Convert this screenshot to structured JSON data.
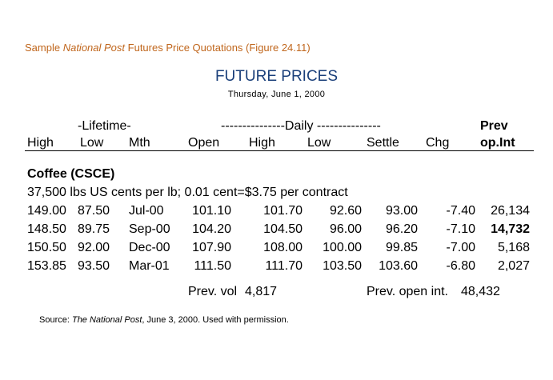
{
  "caption": {
    "prefix": "Sample ",
    "italic": "National Post",
    "suffix": " Futures Price Quotations (Figure 24.11)"
  },
  "heading": "FUTURE PRICES",
  "dateline": "Thursday, June 1, 2000",
  "header": {
    "lifetime_group": "-Lifetime-",
    "daily_group": "---------------Daily ---------------",
    "prev": "Prev",
    "high": "High",
    "low": "Low",
    "mth": "Mth",
    "open": "Open",
    "daily_high": "High",
    "daily_low": "Low",
    "settle": "Settle",
    "chg": "Chg",
    "op_int": "op.Int"
  },
  "section": {
    "title": "Coffee (CSCE)",
    "contract_spec": "37,500 lbs US cents per lb; 0.01 cent=$3.75 per contract"
  },
  "rows": [
    {
      "high": "149.00",
      "low": "87.50",
      "mth": "Jul-00",
      "open": "101.10",
      "dhigh": "101.70",
      "dlow": "92.60",
      "settle": "93.00",
      "chg": "-7.40",
      "opint": "26,134"
    },
    {
      "high": "148.50",
      "low": "89.75",
      "mth": "Sep-00",
      "open": "104.20",
      "dhigh": "104.50",
      "dlow": "96.00",
      "settle": "96.20",
      "chg": "-7.10",
      "opint": "14,732"
    },
    {
      "high": "150.50",
      "low": "92.00",
      "mth": "Dec-00",
      "open": "107.90",
      "dhigh": "108.00",
      "dlow": "100.00",
      "settle": "99.85",
      "chg": "-7.00",
      "opint": "5,168"
    },
    {
      "high": "153.85",
      "low": "93.50",
      "mth": "Mar-01",
      "open": "111.50",
      "dhigh": "111.70",
      "dlow": "103.50",
      "settle": "103.60",
      "chg": "-6.80",
      "opint": "2,027"
    }
  ],
  "footer": {
    "prev_vol_label": "Prev. vol",
    "prev_vol": "4,817",
    "prev_open_int_label": "Prev. open int.",
    "prev_open_int": "48,432"
  },
  "source": {
    "prefix": "Source: ",
    "italic": "The National Post",
    "suffix": ", June 3, 2000.  Used with permission."
  },
  "colors": {
    "caption": "#c0661c",
    "heading": "#1a3f7a",
    "text": "#000000"
  }
}
